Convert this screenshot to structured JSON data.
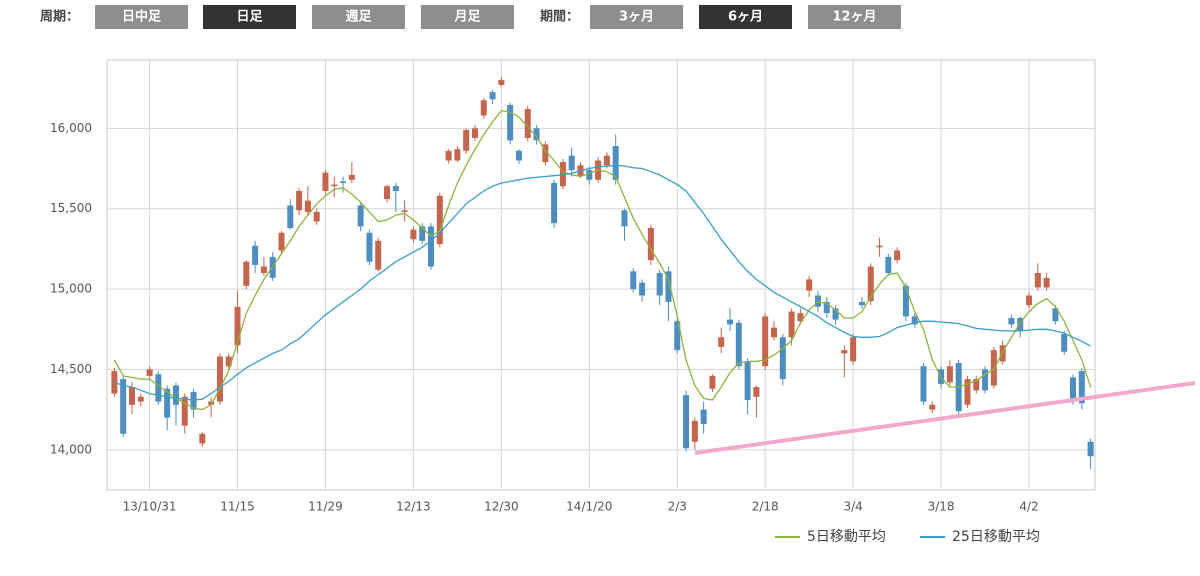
{
  "controls": {
    "period_label": "周期：",
    "period_buttons": [
      {
        "label": "日中足",
        "selected": false
      },
      {
        "label": "日足",
        "selected": true
      },
      {
        "label": "週足",
        "selected": false
      },
      {
        "label": "月足",
        "selected": false
      }
    ],
    "range_label": "期間：",
    "range_buttons": [
      {
        "label": "3ヶ月",
        "selected": false
      },
      {
        "label": "6ヶ月",
        "selected": true
      },
      {
        "label": "12ヶ月",
        "selected": false
      }
    ]
  },
  "chart_data": {
    "type": "candlestick",
    "categories": [
      null,
      null,
      null,
      null,
      "13/10/31",
      null,
      null,
      null,
      null,
      null,
      null,
      null,
      null,
      null,
      "11/15",
      null,
      null,
      null,
      null,
      null,
      null,
      null,
      null,
      null,
      "11/29",
      null,
      null,
      null,
      null,
      null,
      null,
      null,
      null,
      null,
      "12/13",
      null,
      null,
      null,
      null,
      null,
      null,
      null,
      null,
      null,
      "12/30",
      null,
      null,
      null,
      null,
      null,
      null,
      null,
      null,
      null,
      "14/1/20",
      null,
      null,
      null,
      null,
      null,
      null,
      null,
      null,
      null,
      "2/3",
      null,
      null,
      null,
      null,
      null,
      null,
      null,
      null,
      null,
      "2/18",
      null,
      null,
      null,
      null,
      null,
      null,
      null,
      null,
      null,
      "3/4",
      null,
      null,
      null,
      null,
      null,
      null,
      null,
      null,
      null,
      "3/18",
      null,
      null,
      null,
      null,
      null,
      null,
      null,
      null,
      null,
      "4/2",
      null,
      null,
      null,
      null,
      null,
      null,
      null
    ],
    "open": [
      14350,
      14440,
      14280,
      14300,
      14460,
      14470,
      14380,
      14400,
      14150,
      14360,
      14040,
      14280,
      14300,
      14520,
      14650,
      15020,
      15270,
      15100,
      15200,
      15240,
      15520,
      15490,
      15480,
      15420,
      15610,
      15640,
      15670,
      15680,
      15520,
      15350,
      15120,
      15560,
      15640,
      15480,
      15310,
      15390,
      15390,
      15280,
      15800,
      15800,
      15860,
      15940,
      16080,
      16225,
      16270,
      16145,
      15860,
      15940,
      16000,
      15790,
      15660,
      15640,
      15830,
      15705,
      15740,
      15680,
      15770,
      15890,
      15490,
      15110,
      15040,
      15180,
      15100,
      15110,
      14800,
      14340,
      14050,
      14250,
      14380,
      14640,
      14810,
      14790,
      14550,
      14330,
      14520,
      14700,
      14700,
      14700,
      14800,
      14990,
      14960,
      14920,
      14880,
      14600,
      14550,
      14920,
      14925,
      15260,
      15200,
      15180,
      15020,
      14830,
      14520,
      14250,
      14500,
      14420,
      14540,
      14280,
      14370,
      14500,
      14400,
      14550,
      14820,
      14820,
      14900,
      15010,
      15010,
      14880,
      14720,
      14450,
      14490,
      14050
    ],
    "high": [
      14510,
      14460,
      14420,
      14350,
      14520,
      14490,
      14400,
      14420,
      14350,
      14380,
      14110,
      14330,
      14600,
      14600,
      14990,
      15180,
      15300,
      15200,
      15230,
      15360,
      15560,
      15630,
      15640,
      15500,
      15740,
      15700,
      15700,
      15790,
      15540,
      15370,
      15320,
      15650,
      15660,
      15550,
      15390,
      15410,
      15410,
      15600,
      15870,
      15890,
      16000,
      16020,
      16190,
      16240,
      16320,
      16160,
      15870,
      16140,
      16020,
      15920,
      15680,
      15810,
      15880,
      15790,
      15760,
      15820,
      15850,
      15960,
      15500,
      15130,
      15060,
      15400,
      15120,
      15140,
      14830,
      14370,
      14200,
      14300,
      14470,
      14760,
      14880,
      14810,
      14570,
      14400,
      14850,
      14800,
      14720,
      14880,
      14880,
      15080,
      14990,
      14950,
      14900,
      14650,
      14720,
      14950,
      15160,
      15320,
      15220,
      15260,
      15040,
      14850,
      14540,
      14300,
      14520,
      14560,
      14560,
      14460,
      14460,
      14520,
      14640,
      14680,
      14840,
      14830,
      14980,
      15160,
      15100,
      14900,
      14740,
      14470,
      14510,
      14070
    ],
    "low": [
      14330,
      14080,
      14220,
      14270,
      14440,
      14280,
      14120,
      14150,
      14100,
      14200,
      14020,
      14200,
      14280,
      14500,
      14600,
      15000,
      15100,
      15080,
      15050,
      15220,
      15370,
      15460,
      15460,
      15400,
      15590,
      15570,
      15600,
      15660,
      15360,
      15150,
      15110,
      15540,
      15480,
      15420,
      15290,
      15280,
      15120,
      15260,
      15780,
      15790,
      15840,
      15920,
      16060,
      16150,
      16260,
      15900,
      15780,
      15920,
      15900,
      15770,
      15380,
      15620,
      15700,
      15690,
      15650,
      15660,
      15750,
      15650,
      15300,
      14980,
      14920,
      15150,
      14900,
      14800,
      14600,
      13990,
      14000,
      14100,
      14360,
      14600,
      14740,
      14500,
      14220,
      14200,
      14500,
      14680,
      14400,
      14650,
      14780,
      14950,
      14860,
      14820,
      14780,
      14450,
      14530,
      14880,
      14900,
      15200,
      15080,
      15160,
      14800,
      14760,
      14280,
      14230,
      14380,
      14400,
      14220,
      14260,
      14350,
      14350,
      14380,
      14530,
      14760,
      14700,
      14880,
      14990,
      14990,
      14780,
      14590,
      14280,
      14250,
      13880
    ],
    "close": [
      14490,
      14100,
      14390,
      14330,
      14500,
      14300,
      14200,
      14280,
      14330,
      14250,
      14100,
      14300,
      14580,
      14580,
      14890,
      15170,
      15150,
      15140,
      15070,
      15350,
      15380,
      15610,
      15550,
      15480,
      15725,
      15650,
      15660,
      15710,
      15390,
      15170,
      15300,
      15640,
      15610,
      15490,
      15370,
      15300,
      15140,
      15580,
      15860,
      15870,
      15990,
      16000,
      16175,
      16180,
      16300,
      15925,
      15800,
      16120,
      15925,
      15900,
      15410,
      15790,
      15740,
      15770,
      15680,
      15800,
      15830,
      15680,
      15390,
      15000,
      14960,
      15380,
      14960,
      14920,
      14620,
      14010,
      14180,
      14160,
      14460,
      14700,
      14780,
      14520,
      14310,
      14390,
      14830,
      14760,
      14440,
      14860,
      14850,
      15060,
      14890,
      14850,
      14810,
      14620,
      14700,
      14900,
      15140,
      15270,
      15100,
      15240,
      14830,
      14780,
      14300,
      14280,
      14410,
      14520,
      14240,
      14440,
      14440,
      14370,
      14620,
      14650,
      14780,
      14740,
      14960,
      15100,
      15070,
      14800,
      14610,
      14300,
      14290,
      13960
    ],
    "up_color": "#c4654d",
    "down_color": "#4e8dbf",
    "series": [
      {
        "name": "5日移動平均",
        "color": "#8db33c",
        "values": [
          14560,
          14460,
          14450,
          14440,
          14440,
          14400,
          14360,
          14320,
          14290,
          14260,
          14250,
          14280,
          14380,
          14490,
          14670,
          14850,
          14960,
          15060,
          15140,
          15220,
          15300,
          15390,
          15460,
          15530,
          15580,
          15620,
          15630,
          15590,
          15540,
          15480,
          15420,
          15430,
          15460,
          15470,
          15430,
          15380,
          15330,
          15360,
          15520,
          15660,
          15770,
          15870,
          15960,
          16040,
          16110,
          16100,
          16070,
          16010,
          15950,
          15860,
          15800,
          15730,
          15710,
          15700,
          15720,
          15740,
          15730,
          15700,
          15570,
          15440,
          15340,
          15250,
          15160,
          15060,
          14830,
          14560,
          14400,
          14320,
          14310,
          14390,
          14480,
          14540,
          14550,
          14550,
          14560,
          14590,
          14630,
          14680,
          14790,
          14870,
          14920,
          14910,
          14870,
          14820,
          14820,
          14860,
          14950,
          15030,
          15090,
          15100,
          15010,
          14860,
          14750,
          14560,
          14450,
          14390,
          14390,
          14410,
          14430,
          14470,
          14500,
          14610,
          14700,
          14790,
          14860,
          14910,
          14940,
          14890,
          14800,
          14680,
          14560,
          14390
        ]
      },
      {
        "name": "25日移動平均",
        "color": "#3a9ec9",
        "values": [
          14420,
          14400,
          14390,
          14370,
          14350,
          14340,
          14330,
          14320,
          14315,
          14310,
          14315,
          14350,
          14390,
          14425,
          14470,
          14510,
          14540,
          14570,
          14600,
          14620,
          14660,
          14690,
          14740,
          14790,
          14840,
          14880,
          14920,
          14960,
          15000,
          15050,
          15090,
          15130,
          15170,
          15200,
          15230,
          15260,
          15300,
          15350,
          15410,
          15470,
          15530,
          15570,
          15610,
          15640,
          15660,
          15670,
          15680,
          15690,
          15695,
          15700,
          15705,
          15710,
          15720,
          15735,
          15750,
          15760,
          15765,
          15770,
          15765,
          15755,
          15750,
          15730,
          15710,
          15680,
          15650,
          15610,
          15540,
          15470,
          15390,
          15310,
          15240,
          15170,
          15110,
          15060,
          15020,
          14980,
          14950,
          14920,
          14890,
          14860,
          14830,
          14790,
          14760,
          14730,
          14705,
          14700,
          14700,
          14705,
          14730,
          14760,
          14775,
          14790,
          14800,
          14800,
          14795,
          14790,
          14785,
          14770,
          14755,
          14750,
          14745,
          14740,
          14740,
          14740,
          14745,
          14750,
          14750,
          14740,
          14725,
          14700,
          14675,
          14645
        ]
      }
    ],
    "ylim": [
      13750,
      16425
    ],
    "yticks": [
      {
        "value": 14000,
        "label": "14,000"
      },
      {
        "value": 14500,
        "label": "14,500"
      },
      {
        "value": 15000,
        "label": "15,000"
      },
      {
        "value": 15500,
        "label": "15,500"
      },
      {
        "value": 16000,
        "label": "16,000"
      }
    ],
    "grid": true,
    "legend": "bottom-right"
  }
}
